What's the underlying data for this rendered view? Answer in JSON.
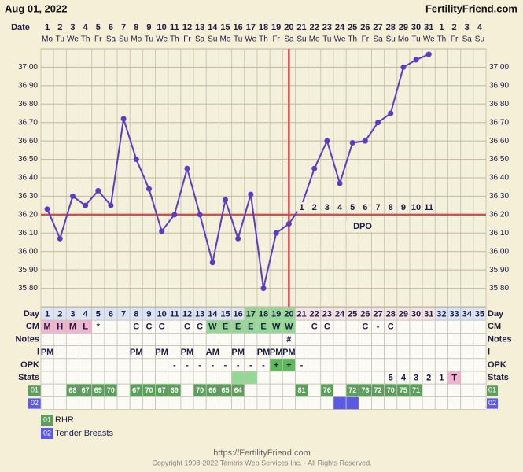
{
  "header": {
    "date": "Aug 01, 2022",
    "site": "FertilityFriend.com"
  },
  "chart_data": {
    "type": "line",
    "x_label": "Date",
    "categories": [
      "1",
      "2",
      "3",
      "4",
      "5",
      "6",
      "7",
      "8",
      "9",
      "10",
      "11",
      "12",
      "13",
      "14",
      "15",
      "16",
      "17",
      "18",
      "19",
      "20",
      "21",
      "22",
      "23",
      "24",
      "25",
      "26",
      "27",
      "28",
      "29",
      "30",
      "31",
      "1",
      "2",
      "3",
      "4"
    ],
    "weekdays": [
      "Mo",
      "Tu",
      "We",
      "Th",
      "Fr",
      "Sa",
      "Su",
      "Mo",
      "Tu",
      "We",
      "Th",
      "Fr",
      "Sa",
      "Su",
      "Mo",
      "Tu",
      "We",
      "Th",
      "Fr",
      "Sa",
      "Su",
      "Mo",
      "Tu",
      "We",
      "Th",
      "Fr",
      "Sa",
      "Su",
      "Mo",
      "Tu",
      "We",
      "Th",
      "Fr",
      "Sa",
      "Su"
    ],
    "values": [
      36.23,
      36.07,
      36.3,
      36.25,
      36.33,
      36.25,
      36.72,
      36.5,
      36.34,
      36.11,
      36.2,
      36.45,
      36.2,
      35.94,
      36.28,
      36.07,
      36.31,
      35.8,
      36.1,
      36.15,
      36.25,
      36.45,
      36.6,
      36.37,
      36.59,
      36.6,
      36.7,
      36.75,
      37.0,
      37.04,
      37.07,
      null,
      null,
      null,
      null
    ],
    "color": "#5b3cc4",
    "coverline": 36.2,
    "coverline_color": "#d05050",
    "ovulation_day": 20,
    "dpo": [
      null,
      null,
      null,
      null,
      null,
      null,
      null,
      null,
      null,
      null,
      null,
      null,
      null,
      null,
      null,
      null,
      null,
      null,
      null,
      null,
      1,
      2,
      3,
      4,
      5,
      6,
      7,
      8,
      9,
      10,
      11,
      null,
      null,
      null,
      null
    ],
    "dpo_title": "DPO",
    "ylim": [
      35.7,
      37.1
    ],
    "yticks": [
      {
        "value": 35.8,
        "label": "35.80"
      },
      {
        "value": 35.9,
        "label": "35.90"
      },
      {
        "value": 36.0,
        "label": "36.00"
      },
      {
        "value": 36.1,
        "label": "36.10"
      },
      {
        "value": 36.2,
        "label": "36.20"
      },
      {
        "value": 36.3,
        "label": "36.30"
      },
      {
        "value": 36.4,
        "label": "36.40"
      },
      {
        "value": 36.5,
        "label": "36.50"
      },
      {
        "value": 36.6,
        "label": "36.60"
      },
      {
        "value": 36.7,
        "label": "36.70"
      },
      {
        "value": 36.8,
        "label": "36.80"
      },
      {
        "value": 36.9,
        "label": "36.90"
      },
      {
        "value": 37.0,
        "label": "37.00"
      }
    ],
    "grid": true
  },
  "table": {
    "rows": [
      {
        "label": "Day",
        "cells": [
          1,
          2,
          3,
          4,
          5,
          6,
          7,
          8,
          9,
          10,
          11,
          12,
          13,
          14,
          15,
          16,
          17,
          18,
          19,
          20,
          21,
          22,
          23,
          24,
          25,
          26,
          27,
          28,
          29,
          30,
          31,
          32,
          33,
          34,
          35
        ],
        "fills": [
          "#dbe4f4",
          "#dbe4f4",
          "#dbe4f4",
          "#dbe4f4",
          "#dbe4f4",
          "#dbe4f4",
          "#dbe4f4",
          "#dbe4f4",
          "#dbe4f4",
          "#dbe4f4",
          "#dbe4f4",
          "#dbe4f4",
          "#dbe4f4",
          "#dbe4f4",
          "#dbe4f4",
          "#dbe4f4",
          "#93d993",
          "#93d993",
          "#93d993",
          "#93d993",
          "#f6e2e2",
          "#f6e2e2",
          "#f6e2e2",
          "#f6e2e2",
          "#f6e2e2",
          "#f6e2e2",
          "#f6e2e2",
          "#f6e2e2",
          "#f6e2e2",
          "#f6e2e2",
          "#f6e2e2",
          "#dbe4f4",
          "#dbe4f4",
          "#dbe4f4",
          "#dbe4f4"
        ]
      },
      {
        "label": "CM",
        "cells": [
          "M",
          "H",
          "M",
          "L",
          "*",
          null,
          null,
          "C",
          "C",
          "C",
          null,
          "C",
          "C",
          "W",
          "E",
          "E",
          "E",
          "E",
          "W",
          "W",
          null,
          "C",
          "C",
          null,
          null,
          "C",
          "-",
          "C",
          null,
          null,
          null,
          null,
          null,
          null,
          null
        ],
        "fills": [
          "#f3b4cf",
          "#f3b4cf",
          "#f3b4cf",
          "#f3b4cf",
          null,
          null,
          null,
          null,
          null,
          null,
          null,
          null,
          null,
          "#93d993",
          "#93d993",
          "#93d993",
          "#93d993",
          "#93d993",
          "#93d993",
          "#93d993",
          null,
          null,
          null,
          null,
          null,
          null,
          null,
          null,
          null,
          null,
          null,
          null,
          null,
          null,
          null
        ]
      },
      {
        "label": "Notes",
        "cells": [
          null,
          null,
          null,
          null,
          null,
          null,
          null,
          null,
          null,
          null,
          null,
          null,
          null,
          null,
          null,
          null,
          null,
          null,
          null,
          "#",
          null,
          null,
          null,
          null,
          null,
          null,
          null,
          null,
          null,
          null,
          null,
          null,
          null,
          null,
          null
        ]
      },
      {
        "label": "I",
        "cells": [
          "PM",
          null,
          null,
          null,
          null,
          null,
          null,
          "PM",
          null,
          "PM",
          null,
          "PM",
          null,
          "AM",
          null,
          "PM",
          null,
          "PM",
          "PM",
          "PM",
          null,
          null,
          null,
          null,
          null,
          null,
          null,
          null,
          null,
          null,
          null,
          null,
          null,
          null,
          null
        ]
      },
      {
        "label": "OPK",
        "cells": [
          null,
          null,
          null,
          null,
          null,
          null,
          null,
          null,
          null,
          null,
          "-",
          "-",
          "-",
          "-",
          "-",
          "-",
          "-",
          "-",
          "+",
          "+",
          "-",
          null,
          null,
          null,
          null,
          null,
          null,
          null,
          null,
          null,
          null,
          null,
          null,
          null,
          null
        ],
        "fills": [
          null,
          null,
          null,
          null,
          null,
          null,
          null,
          null,
          null,
          null,
          null,
          null,
          null,
          null,
          null,
          null,
          null,
          null,
          "#5fb85f",
          "#5fb85f",
          null,
          null,
          null,
          null,
          null,
          null,
          null,
          null,
          null,
          null,
          null,
          null,
          null,
          null,
          null
        ]
      },
      {
        "label": "Stats",
        "cells": [
          null,
          null,
          null,
          null,
          null,
          null,
          null,
          null,
          null,
          null,
          null,
          null,
          null,
          null,
          null,
          null,
          null,
          null,
          null,
          null,
          null,
          null,
          null,
          null,
          null,
          null,
          null,
          "5",
          "4",
          "3",
          "2",
          "1",
          "T",
          null,
          null
        ],
        "fills": [
          null,
          null,
          null,
          null,
          null,
          null,
          null,
          null,
          null,
          null,
          null,
          null,
          null,
          null,
          null,
          "#93d993",
          "#93d993",
          null,
          null,
          null,
          null,
          null,
          null,
          null,
          null,
          null,
          null,
          null,
          null,
          null,
          null,
          null,
          "#f3b4cf",
          null,
          null
        ]
      },
      {
        "label": "01",
        "label_fill": "#5c9e5c",
        "text_color": "#ffffff",
        "cells": [
          null,
          null,
          68,
          67,
          69,
          70,
          null,
          67,
          70,
          67,
          69,
          null,
          70,
          66,
          65,
          64,
          null,
          null,
          null,
          null,
          81,
          null,
          76,
          null,
          72,
          76,
          72,
          70,
          75,
          71,
          null,
          null,
          null,
          null,
          null
        ],
        "fills": [
          null,
          null,
          "#5c9e5c",
          "#5c9e5c",
          "#5c9e5c",
          "#5c9e5c",
          null,
          "#5c9e5c",
          "#5c9e5c",
          "#5c9e5c",
          "#5c9e5c",
          null,
          "#5c9e5c",
          "#5c9e5c",
          "#5c9e5c",
          "#5c9e5c",
          null,
          null,
          null,
          null,
          "#5c9e5c",
          null,
          "#5c9e5c",
          null,
          "#5c9e5c",
          "#5c9e5c",
          "#5c9e5c",
          "#5c9e5c",
          "#5c9e5c",
          "#5c9e5c",
          null,
          null,
          null,
          null,
          null
        ]
      },
      {
        "label": "02",
        "label_fill": "#5a5ae6",
        "text_color": "#ffffff",
        "cells": [
          null,
          null,
          null,
          null,
          null,
          null,
          null,
          null,
          null,
          null,
          null,
          null,
          null,
          null,
          null,
          null,
          null,
          null,
          null,
          null,
          null,
          null,
          null,
          null,
          null,
          null,
          null,
          null,
          null,
          null,
          null,
          null,
          null,
          null,
          null
        ],
        "fills": [
          null,
          null,
          null,
          null,
          null,
          null,
          null,
          null,
          null,
          null,
          null,
          null,
          null,
          null,
          null,
          null,
          null,
          null,
          null,
          null,
          null,
          null,
          null,
          "#5a5ae6",
          "#5a5ae6",
          null,
          null,
          null,
          null,
          null,
          null,
          null,
          null,
          null,
          null
        ]
      }
    ]
  },
  "legend": [
    {
      "code": "01",
      "label": "RHR",
      "color": "#5c9e5c"
    },
    {
      "code": "02",
      "label": "Tender Breasts",
      "color": "#5a5ae6"
    }
  ],
  "footer": {
    "url": "https://FertilityFriend.com",
    "copyright": "Copyright 1998-2022 Tamtris Web Services Inc. - All Rights Reserved."
  }
}
